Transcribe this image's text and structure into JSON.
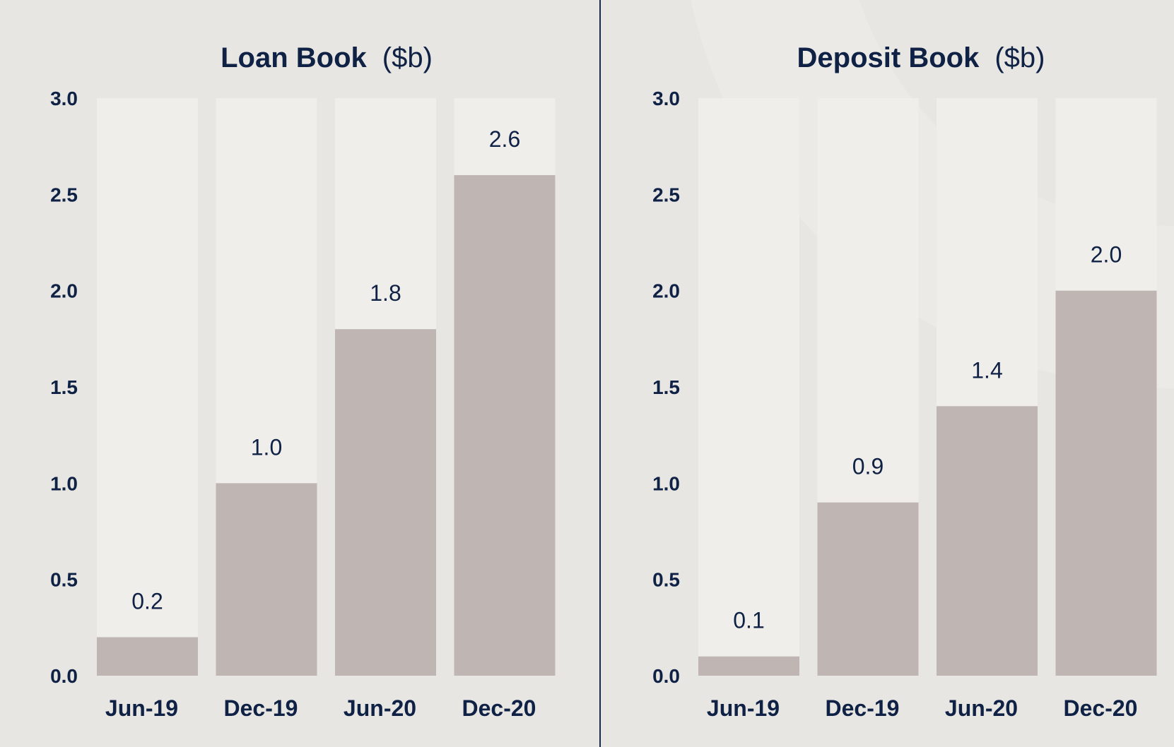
{
  "colors": {
    "background": "#e8e6e2",
    "track": "#efeeeb",
    "bar": "#bfb6b3",
    "text": "#0f2245",
    "divider": "#1b2a4a",
    "arc": "#f2f1ee"
  },
  "chart_data": [
    {
      "type": "bar",
      "title": "Loan Book",
      "unit": "($b)",
      "categories": [
        "Jun-19",
        "Dec-19",
        "Jun-20",
        "Dec-20"
      ],
      "values": [
        0.2,
        1.0,
        1.8,
        2.6
      ],
      "value_labels": [
        "0.2",
        "1.0",
        "1.8",
        "2.6"
      ],
      "ylim": [
        0,
        3.0
      ],
      "yticks": [
        "0.0",
        "0.5",
        "1.0",
        "1.5",
        "2.0",
        "2.5",
        "3.0"
      ],
      "grid": false,
      "legend": "none"
    },
    {
      "type": "bar",
      "title": "Deposit Book",
      "unit": "($b)",
      "categories": [
        "Jun-19",
        "Dec-19",
        "Jun-20",
        "Dec-20"
      ],
      "values": [
        0.1,
        0.9,
        1.4,
        2.0
      ],
      "value_labels": [
        "0.1",
        "0.9",
        "1.4",
        "2.0"
      ],
      "ylim": [
        0,
        3.0
      ],
      "yticks": [
        "0.0",
        "0.5",
        "1.0",
        "1.5",
        "2.0",
        "2.5",
        "3.0"
      ],
      "grid": false,
      "legend": "none"
    }
  ]
}
